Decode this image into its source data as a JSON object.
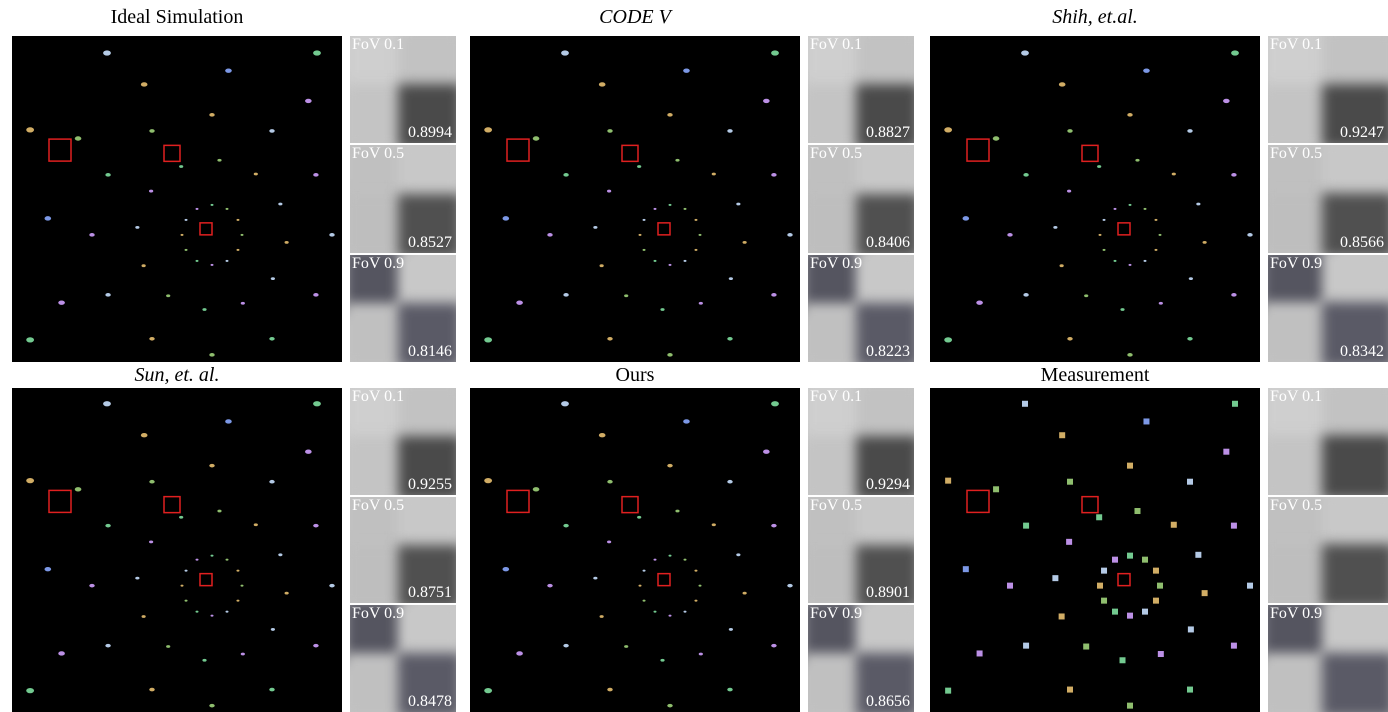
{
  "panels": [
    {
      "title": "Ideal Simulation",
      "italic": false,
      "crops": [
        {
          "label": "FoV 0.1",
          "value": "0.8994"
        },
        {
          "label": "FoV 0.5",
          "value": "0.8527"
        },
        {
          "label": "FoV 0.9",
          "value": "0.8146"
        }
      ]
    },
    {
      "title": "CODE V",
      "italic": true,
      "crops": [
        {
          "label": "FoV 0.1",
          "value": "0.8827"
        },
        {
          "label": "FoV 0.5",
          "value": "0.8406"
        },
        {
          "label": "FoV 0.9",
          "value": "0.8223"
        }
      ]
    },
    {
      "title": "Shih, et.al.",
      "italic": true,
      "crops": [
        {
          "label": "FoV 0.1",
          "value": "0.9247"
        },
        {
          "label": "FoV 0.5",
          "value": "0.8566"
        },
        {
          "label": "FoV 0.9",
          "value": "0.8342"
        }
      ]
    },
    {
      "title": "Sun, et. al.",
      "italic": true,
      "crops": [
        {
          "label": "FoV 0.1",
          "value": "0.9255"
        },
        {
          "label": "FoV 0.5",
          "value": "0.8751"
        },
        {
          "label": "FoV 0.9",
          "value": "0.8478"
        }
      ]
    },
    {
      "title": "Ours",
      "italic": false,
      "crops": [
        {
          "label": "FoV 0.1",
          "value": "0.9294"
        },
        {
          "label": "FoV 0.5",
          "value": "0.8901"
        },
        {
          "label": "FoV 0.9",
          "value": "0.8656"
        }
      ]
    },
    {
      "title": "Measurement",
      "italic": false,
      "crops": [
        {
          "label": "FoV 0.1"
        },
        {
          "label": "FoV 0.5"
        },
        {
          "label": "FoV 0.9"
        }
      ]
    }
  ]
}
